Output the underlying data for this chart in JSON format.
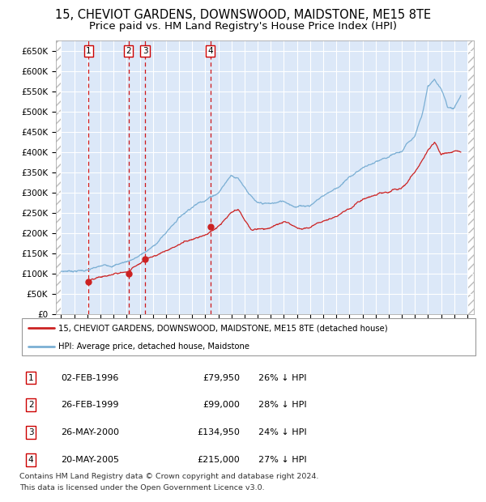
{
  "title": "15, CHEVIOT GARDENS, DOWNSWOOD, MAIDSTONE, ME15 8TE",
  "subtitle": "Price paid vs. HM Land Registry's House Price Index (HPI)",
  "legend_line1": "15, CHEVIOT GARDENS, DOWNSWOOD, MAIDSTONE, ME15 8TE (detached house)",
  "legend_line2": "HPI: Average price, detached house, Maidstone",
  "footer_line1": "Contains HM Land Registry data © Crown copyright and database right 2024.",
  "footer_line2": "This data is licensed under the Open Government Licence v3.0.",
  "transactions": [
    {
      "num": 1,
      "date": "02-FEB-1996",
      "price": "£79,950",
      "pct": "26% ↓ HPI",
      "year": 1996.08
    },
    {
      "num": 2,
      "date": "26-FEB-1999",
      "price": "£99,000",
      "pct": "28% ↓ HPI",
      "year": 1999.15
    },
    {
      "num": 3,
      "date": "26-MAY-2000",
      "price": "£134,950",
      "pct": "24% ↓ HPI",
      "year": 2000.4
    },
    {
      "num": 4,
      "date": "20-MAY-2005",
      "price": "£215,000",
      "pct": "27% ↓ HPI",
      "year": 2005.38
    }
  ],
  "transaction_values": [
    79950,
    99000,
    134950,
    215000
  ],
  "hpi_color": "#7bafd4",
  "price_color": "#cc2222",
  "vline_color": "#cc0000",
  "plot_bg_color": "#dce8f8",
  "grid_color": "#ffffff",
  "title_fontsize": 10.5,
  "subtitle_fontsize": 9.5,
  "hpi_anchors_x": [
    1994.0,
    1995.0,
    1996.0,
    1997.0,
    1998.0,
    1999.0,
    2000.0,
    2001.0,
    2002.0,
    2003.0,
    2004.0,
    2005.0,
    2006.0,
    2007.0,
    2007.5,
    2008.0,
    2009.0,
    2010.0,
    2011.0,
    2012.0,
    2013.0,
    2014.0,
    2015.0,
    2016.0,
    2017.0,
    2018.0,
    2019.0,
    2020.0,
    2021.0,
    2021.5,
    2022.0,
    2022.5,
    2023.0,
    2023.5,
    2024.0,
    2024.5
  ],
  "hpi_anchors_y": [
    105000,
    108000,
    110000,
    115000,
    120000,
    130000,
    145000,
    165000,
    200000,
    240000,
    270000,
    290000,
    310000,
    355000,
    350000,
    330000,
    285000,
    280000,
    285000,
    275000,
    280000,
    305000,
    325000,
    350000,
    375000,
    385000,
    390000,
    400000,
    440000,
    490000,
    565000,
    580000,
    555000,
    510000,
    510000,
    540000
  ],
  "price_anchors_x": [
    1996.08,
    1999.15,
    2000.4,
    2005.38,
    2006.0,
    2007.0,
    2007.5,
    2008.5,
    2009.5,
    2010.0,
    2011.0,
    2012.0,
    2013.0,
    2014.0,
    2015.0,
    2016.0,
    2017.0,
    2018.0,
    2019.0,
    2020.0,
    2021.0,
    2022.0,
    2022.5,
    2023.0,
    2024.0,
    2024.5
  ],
  "price_anchors_y": [
    79950,
    99000,
    134950,
    215000,
    228000,
    258000,
    262000,
    210000,
    215000,
    220000,
    230000,
    218000,
    220000,
    240000,
    258000,
    280000,
    300000,
    310000,
    315000,
    320000,
    358000,
    415000,
    430000,
    400000,
    400000,
    400000
  ]
}
